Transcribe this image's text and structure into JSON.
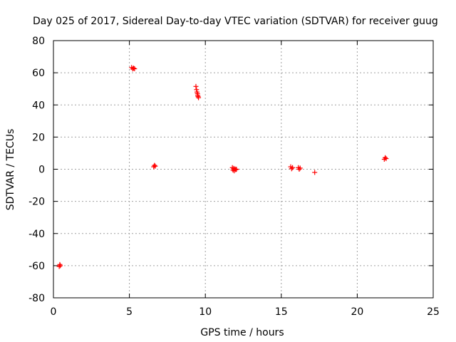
{
  "chart_data": {
    "type": "scatter",
    "title": "Day 025 of 2017, Sidereal Day-to-day VTEC variation (SDTVAR) for receiver guug",
    "xlabel": "GPS time / hours",
    "ylabel": "SDTVAR / TECUs",
    "xlim": [
      0,
      25
    ],
    "ylim": [
      -80,
      80
    ],
    "xticks": [
      0,
      5,
      10,
      15,
      20,
      25
    ],
    "yticks": [
      -80,
      -60,
      -40,
      -20,
      0,
      20,
      40,
      60,
      80
    ],
    "grid": true,
    "marker": "plus",
    "color": "#ff0000",
    "series": [
      {
        "name": "SDTVAR",
        "x": [
          0.38,
          0.42,
          0.45,
          5.15,
          5.22,
          5.28,
          5.34,
          6.6,
          6.65,
          6.7,
          9.38,
          9.42,
          9.45,
          9.48,
          9.5,
          9.52,
          9.55,
          11.78,
          11.82,
          11.86,
          11.9,
          11.95,
          12.0,
          12.05,
          15.62,
          15.68,
          15.74,
          16.12,
          16.18,
          16.24,
          17.2,
          21.78,
          21.84,
          21.9
        ],
        "y": [
          -60.5,
          -59.3,
          -60.0,
          63.3,
          62.4,
          62.9,
          62.5,
          1.5,
          2.4,
          1.9,
          51.5,
          49.5,
          48.0,
          47.0,
          46.0,
          45.2,
          44.5,
          1.0,
          -0.5,
          0.5,
          -1.0,
          0.2,
          -0.3,
          0.0,
          1.5,
          0.3,
          1.0,
          1.0,
          0.0,
          0.7,
          -2.0,
          6.2,
          7.2,
          6.6
        ]
      }
    ]
  }
}
